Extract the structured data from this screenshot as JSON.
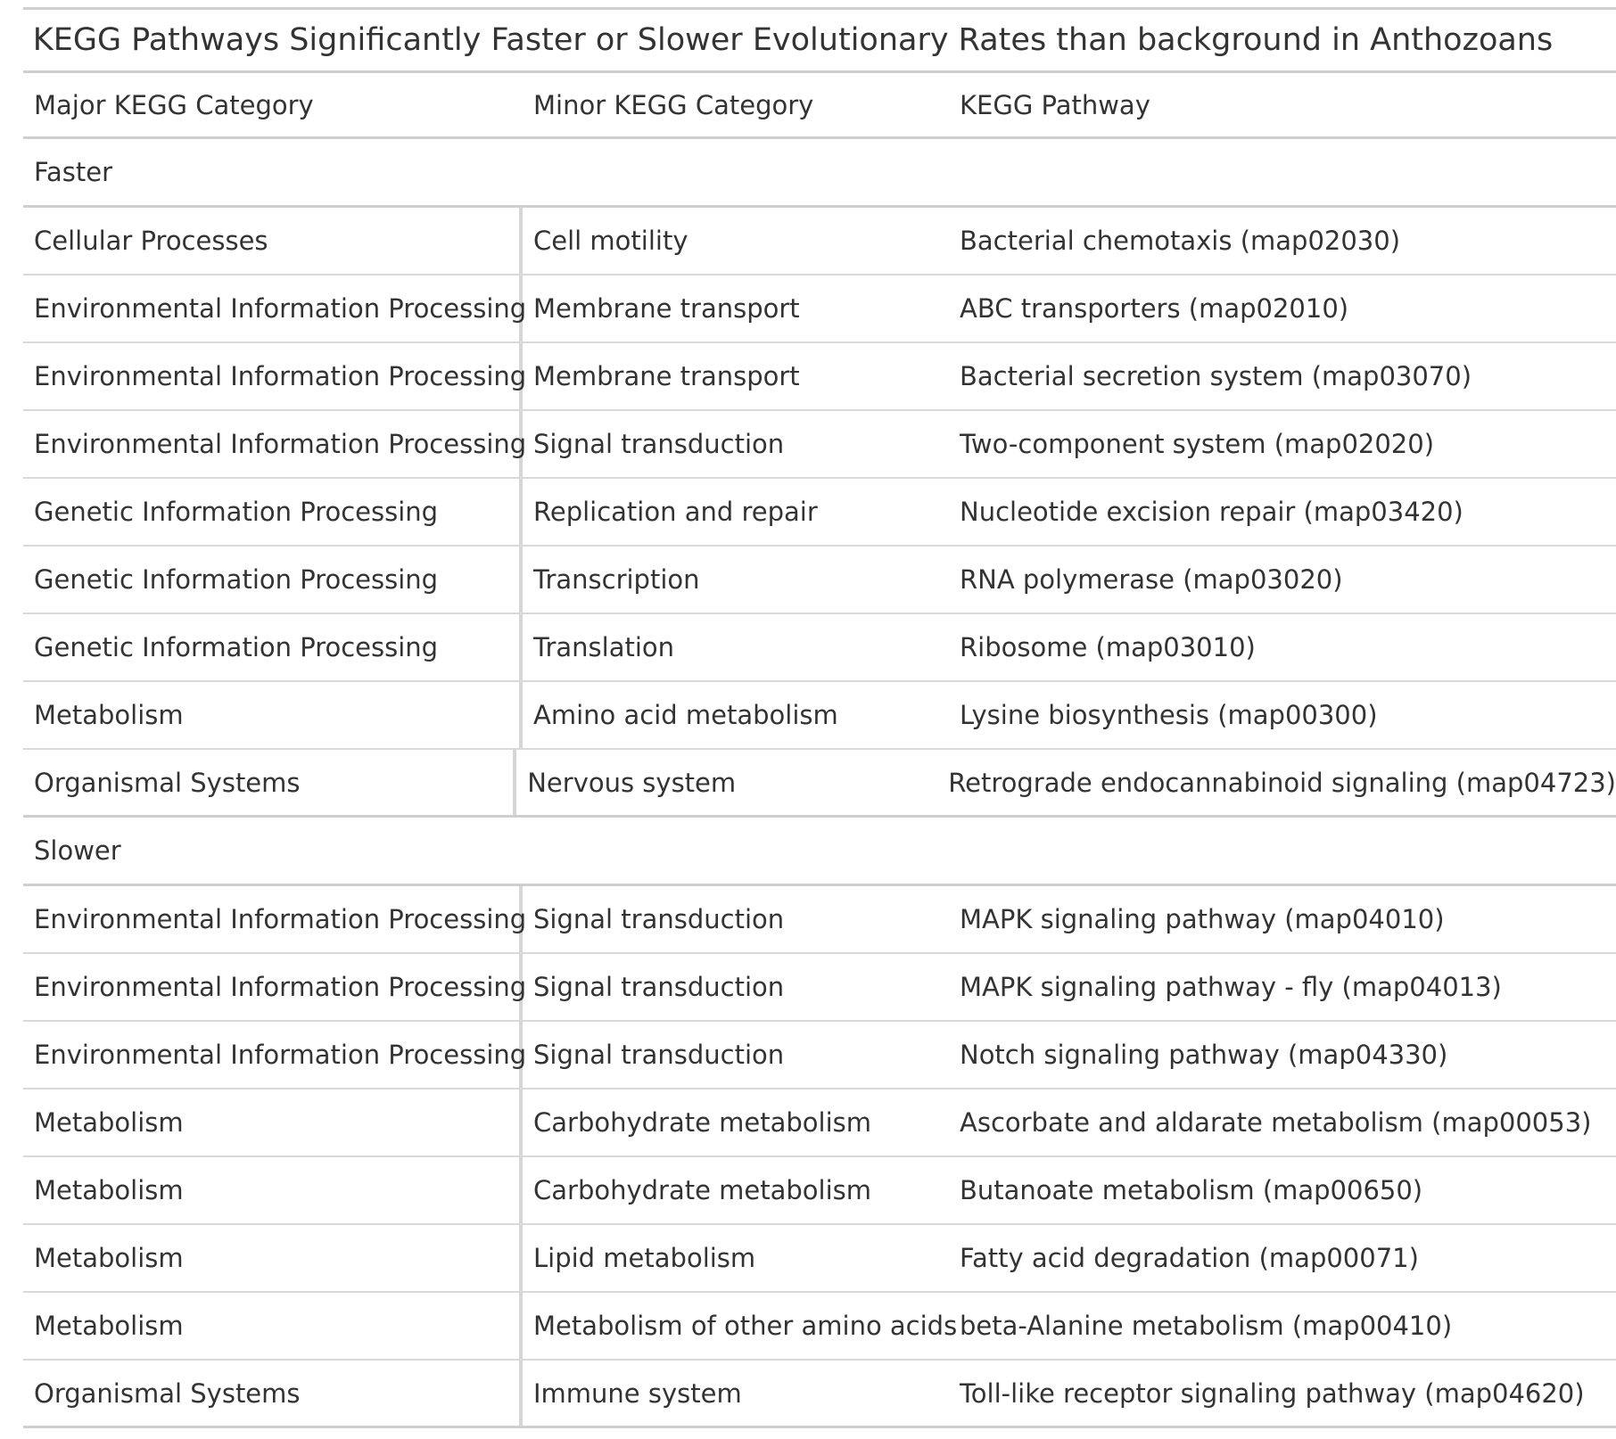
{
  "title": "KEGG Pathways Significantly Faster or Slower Evolutionary Rates than background in Anthozoans",
  "columns": [
    "Major KEGG Category",
    "Minor KEGG Category",
    "KEGG Pathway"
  ],
  "groups": [
    {
      "label": "Faster",
      "rows": [
        [
          "Cellular Processes",
          "Cell motility",
          "Bacterial chemotaxis (map02030)"
        ],
        [
          "Environmental Information Processing",
          "Membrane transport",
          "ABC transporters (map02010)"
        ],
        [
          "Environmental Information Processing",
          "Membrane transport",
          "Bacterial secretion system (map03070)"
        ],
        [
          "Environmental Information Processing",
          "Signal transduction",
          "Two-component system (map02020)"
        ],
        [
          "Genetic Information Processing",
          "Replication and repair",
          "Nucleotide excision repair (map03420)"
        ],
        [
          "Genetic Information Processing",
          "Transcription",
          "RNA polymerase (map03020)"
        ],
        [
          "Genetic Information Processing",
          "Translation",
          "Ribosome (map03010)"
        ],
        [
          "Metabolism",
          "Amino acid metabolism",
          "Lysine biosynthesis (map00300)"
        ],
        [
          "Organismal Systems",
          "Nervous system",
          "Retrograde endocannabinoid signaling (map04723)"
        ]
      ]
    },
    {
      "label": "Slower",
      "rows": [
        [
          "Environmental Information Processing",
          "Signal transduction",
          "MAPK signaling pathway (map04010)"
        ],
        [
          "Environmental Information Processing",
          "Signal transduction",
          "MAPK signaling pathway - fly (map04013)"
        ],
        [
          "Environmental Information Processing",
          "Signal transduction",
          "Notch signaling pathway (map04330)"
        ],
        [
          "Metabolism",
          "Carbohydrate metabolism",
          "Ascorbate and aldarate metabolism (map00053)"
        ],
        [
          "Metabolism",
          "Carbohydrate metabolism",
          "Butanoate metabolism (map00650)"
        ],
        [
          "Metabolism",
          "Lipid metabolism",
          "Fatty acid degradation (map00071)"
        ],
        [
          "Metabolism",
          "Metabolism of other amino acids",
          "beta-Alanine metabolism (map00410)"
        ],
        [
          "Organismal Systems",
          "Immune system",
          "Toll-like receptor signaling pathway (map04620)"
        ]
      ]
    }
  ]
}
